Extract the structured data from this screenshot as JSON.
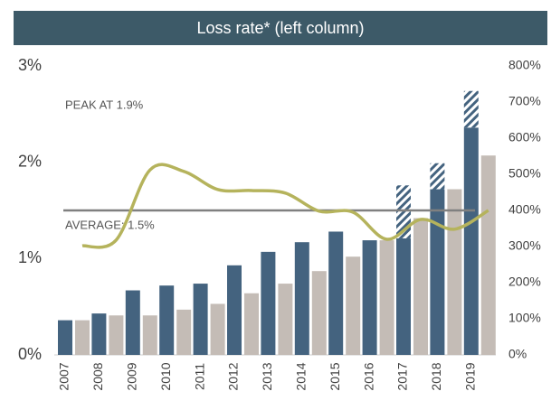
{
  "chart_data": {
    "type": "bar",
    "title": "Loss rate* (left column)",
    "categories": [
      "2007",
      "2008",
      "2009",
      "2010",
      "2011",
      "2012",
      "2013",
      "2014",
      "2015",
      "2016",
      "2017",
      "2018",
      "2019"
    ],
    "series": [
      {
        "color": "#44637f",
        "values": [
          0.36,
          0.43,
          0.67,
          0.72,
          0.74,
          0.93,
          1.07,
          1.17,
          1.28,
          1.19,
          1.21,
          1.72,
          2.36
        ]
      },
      {
        "color": "#c4bcb6",
        "values": [
          0.36,
          0.41,
          0.41,
          0.47,
          0.53,
          0.64,
          0.74,
          0.87,
          1.02,
          1.19,
          1.42,
          1.72,
          2.07
        ]
      },
      {
        "color": "#44637f",
        "pattern": "hatch",
        "stacked_on": 0,
        "values": [
          null,
          null,
          null,
          null,
          null,
          null,
          null,
          null,
          null,
          null,
          0.55,
          0.27,
          0.38
        ]
      },
      {
        "color": "#b5b35c",
        "type": "line",
        "axis": "y2",
        "values": [
          302,
          318,
          512,
          508,
          458,
          455,
          448,
          398,
          395,
          320,
          375,
          348,
          400
        ]
      }
    ],
    "ylim": [
      0,
      3
    ],
    "yticks": [
      {
        "value": 0,
        "label": "0%"
      },
      {
        "value": 1,
        "label": "1%"
      },
      {
        "value": 2,
        "label": "2%"
      },
      {
        "value": 3,
        "label": "3%"
      }
    ],
    "y2lim": [
      0,
      800
    ],
    "y2ticks": [
      {
        "value": 0,
        "label": "0%"
      },
      {
        "value": 100,
        "label": "100%"
      },
      {
        "value": 200,
        "label": "200%"
      },
      {
        "value": 300,
        "label": "300%"
      },
      {
        "value": 400,
        "label": "400%"
      },
      {
        "value": 500,
        "label": "500%"
      },
      {
        "value": 600,
        "label": "600%"
      },
      {
        "value": 700,
        "label": "700%"
      },
      {
        "value": 800,
        "label": "800%"
      }
    ],
    "reference_line": {
      "value": 1.5,
      "label": "AVERAGE: 1.5%",
      "color": "#808080"
    },
    "annotations": [
      "PEAK AT 1.9%"
    ]
  }
}
